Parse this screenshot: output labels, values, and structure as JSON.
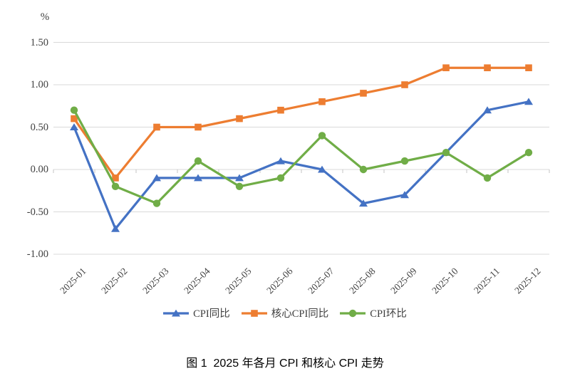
{
  "figure": {
    "unit_label": "%",
    "caption": "图 1  2025 年各月 CPI 和核心 CPI 走势"
  },
  "chart_data": {
    "type": "line",
    "title": "图 1  2025 年各月 CPI 和核心 CPI 走势",
    "xlabel": "",
    "ylabel": "%",
    "categories": [
      "2025-01",
      "2025-02",
      "2025-03",
      "2025-04",
      "2025-05",
      "2025-06",
      "2025-07",
      "2025-08",
      "2025-09",
      "2025-10",
      "2025-11",
      "2025-12"
    ],
    "series": [
      {
        "name": "CPI同比",
        "marker": "triangle",
        "color": "#4472C4",
        "values": [
          0.5,
          -0.7,
          -0.1,
          -0.1,
          -0.1,
          0.1,
          0.0,
          -0.4,
          -0.3,
          0.2,
          0.7,
          0.8
        ]
      },
      {
        "name": "核心CPI同比",
        "marker": "square",
        "color": "#ED7D31",
        "values": [
          0.6,
          -0.1,
          0.5,
          0.5,
          0.6,
          0.7,
          0.8,
          0.9,
          1.0,
          1.2,
          1.2,
          1.2
        ]
      },
      {
        "name": "CPI环比",
        "marker": "circle",
        "color": "#70AD47",
        "values": [
          0.7,
          -0.2,
          -0.4,
          0.1,
          -0.2,
          -0.1,
          0.4,
          0.0,
          0.1,
          0.2,
          -0.1,
          0.2
        ]
      }
    ],
    "ylim": [
      -1.0,
      1.5
    ],
    "yticks": [
      1.5,
      1.0,
      0.5,
      0.0,
      -0.5,
      -1.0
    ],
    "ytick_labels": [
      "1.50",
      "1.00",
      "0.50",
      "0.00",
      "-0.50",
      "-1.00"
    ],
    "grid": true,
    "legend_position": "bottom",
    "colors": {
      "gridline": "#d9d9d9",
      "axis": "#c6c6c6",
      "tick_text": "#404040"
    }
  }
}
